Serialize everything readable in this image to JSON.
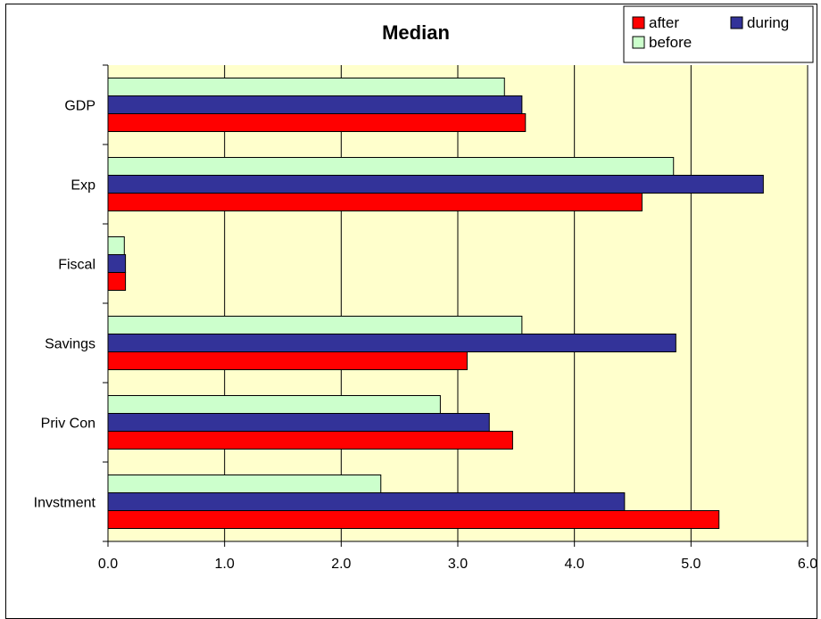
{
  "chart_data": {
    "type": "bar",
    "orientation": "horizontal",
    "title": "Median",
    "categories": [
      "GDP",
      "Exp",
      "Fiscal",
      "Savings",
      "Priv Con",
      "Invstment"
    ],
    "series": [
      {
        "name": "before",
        "color": "#CCFFCC",
        "values": [
          3.4,
          4.85,
          0.14,
          3.55,
          2.85,
          2.34
        ]
      },
      {
        "name": "during",
        "color": "#333399",
        "values": [
          3.55,
          5.62,
          0.15,
          4.87,
          3.27,
          4.43
        ]
      },
      {
        "name": "after",
        "color": "#FF0000",
        "values": [
          3.58,
          4.58,
          0.15,
          3.08,
          3.47,
          5.24
        ]
      }
    ],
    "xlim": [
      0,
      6
    ],
    "xticks": [
      "0.0",
      "1.0",
      "2.0",
      "3.0",
      "4.0",
      "5.0",
      "6.0"
    ],
    "xtick_values": [
      0,
      1,
      2,
      3,
      4,
      5,
      6
    ],
    "xlabel": "",
    "ylabel": "",
    "grid": "vertical",
    "plot_background": "#FFFFCC",
    "legend": {
      "position": "top-right",
      "entries": [
        {
          "name": "after",
          "color": "#FF0000"
        },
        {
          "name": "during",
          "color": "#333399"
        },
        {
          "name": "before",
          "color": "#CCFFCC"
        }
      ]
    }
  }
}
